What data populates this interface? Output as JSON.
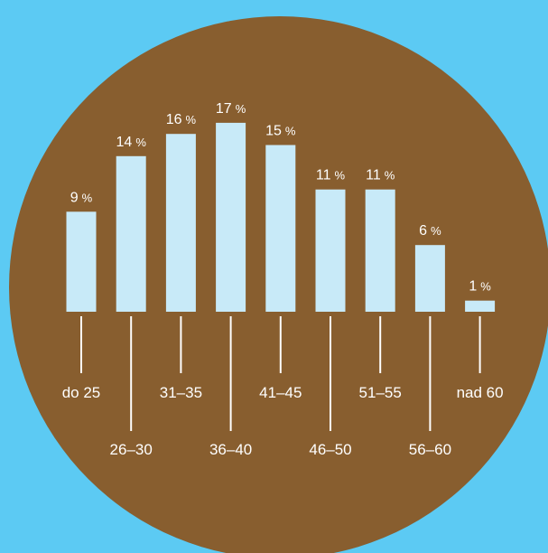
{
  "colors": {
    "background": "#5ccaf3",
    "circle": "#885e2f",
    "bar": "#c8eaf8",
    "text": "#ffffff"
  },
  "chart_data": {
    "type": "bar",
    "categories": [
      "do 25",
      "26–30",
      "31–35",
      "36–40",
      "41–45",
      "46–50",
      "51–55",
      "56–60",
      "nad 60"
    ],
    "values": [
      9,
      14,
      16,
      17,
      15,
      11,
      11,
      6,
      1
    ],
    "value_labels": [
      "9",
      "14",
      "16",
      "17",
      "15",
      "11",
      "11",
      "6",
      "1"
    ],
    "unit": "%",
    "ylim": [
      0,
      17
    ],
    "grid": false,
    "legend": "none",
    "label_stagger": "alternating"
  }
}
